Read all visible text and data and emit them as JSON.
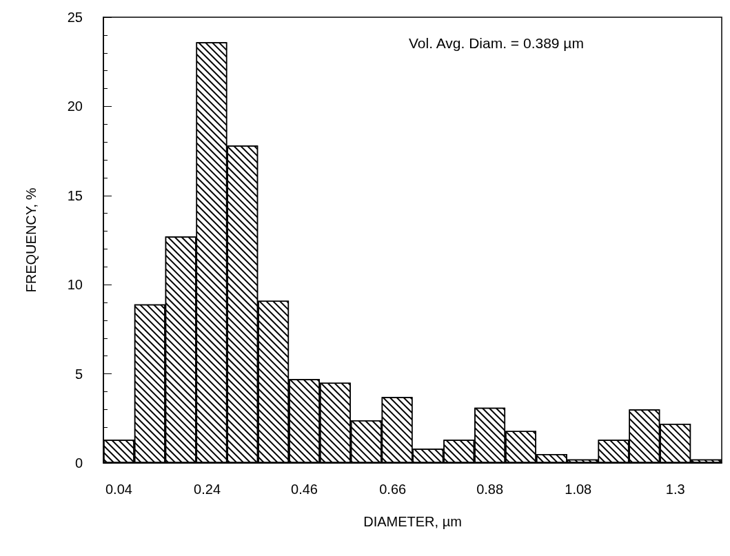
{
  "chart_data": {
    "type": "histogram",
    "xlabel": "DIAMETER, µm",
    "ylabel": "FREQUENCY, %",
    "annotations": [
      "Vol. Avg. Diam. = 0.389 µm"
    ],
    "bins": [
      0.005,
      0.075,
      0.145,
      0.215,
      0.285,
      0.355,
      0.425,
      0.495,
      0.565,
      0.635,
      0.705,
      0.775,
      0.845,
      0.915,
      0.985,
      1.055,
      1.125,
      1.195,
      1.265,
      1.335,
      1.405
    ],
    "values": [
      1.3,
      8.9,
      12.7,
      23.6,
      17.8,
      9.1,
      4.7,
      4.5,
      2.4,
      3.7,
      0.8,
      1.3,
      3.1,
      1.8,
      0.5,
      0.2,
      1.3,
      3.0,
      2.2,
      0.2
    ],
    "color": "#000000",
    "xlim": [
      0.005,
      1.405
    ],
    "xticks": [
      0.04,
      0.24,
      0.46,
      0.66,
      0.88,
      1.08,
      1.3
    ],
    "ylim": [
      0,
      25
    ],
    "yticks": [
      0,
      5,
      10,
      15,
      20,
      25
    ],
    "grid": false
  }
}
